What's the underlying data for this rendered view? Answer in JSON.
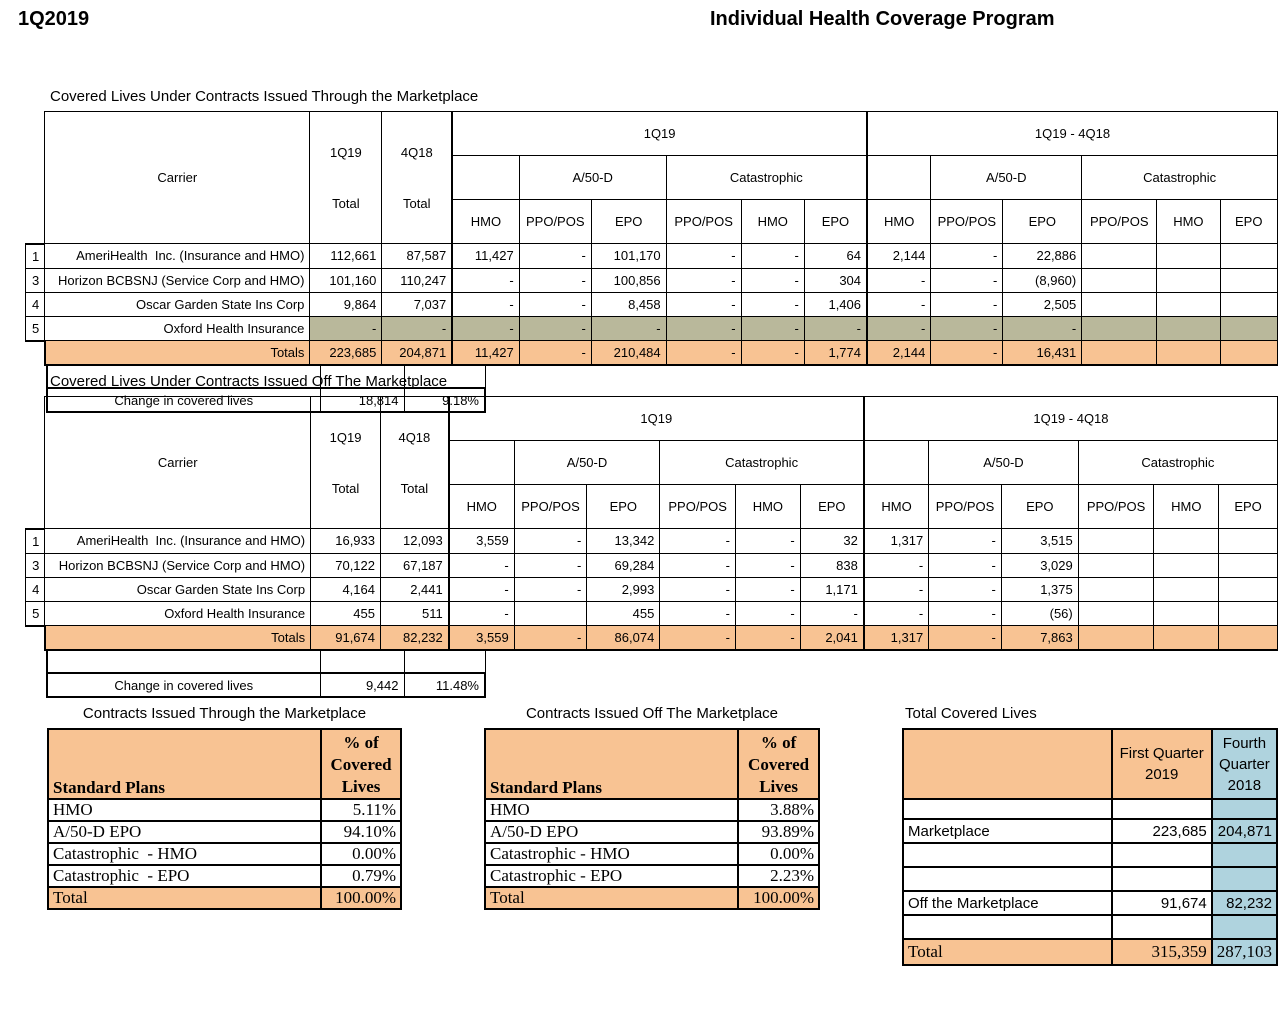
{
  "page": {
    "quarter": "1Q2019",
    "title": "Individual Health Coverage Program"
  },
  "colors": {
    "totals_orange": "#F8C393",
    "suppressed_olive": "#B9B89B",
    "prior_quarter_blue": "#AFD3DE"
  },
  "header": {
    "carrier": "Carrier",
    "q1": "1Q19",
    "q4": "4Q18",
    "total": "Total",
    "group_current": "1Q19",
    "group_diff": "1Q19 - 4Q18",
    "a50d": "A/50-D",
    "catastrophic": "Catastrophic",
    "plans": [
      "HMO",
      "PPO/POS",
      "EPO",
      "PPO/POS",
      "HMO",
      "EPO"
    ]
  },
  "marketplace": {
    "title": "Covered Lives Under Contracts Issued Through the Marketplace",
    "rows": [
      {
        "num": "1",
        "carrier": "AmeriHealth  Inc. (Insurance and HMO)",
        "olive": false,
        "values": [
          "112,661",
          "87,587",
          "11,427",
          "-",
          "101,170",
          "-",
          "-",
          "64",
          "2,144",
          "-",
          "22,886",
          "",
          "",
          ""
        ]
      },
      {
        "num": "3",
        "carrier": "Horizon BCBSNJ (Service Corp and HMO)",
        "olive": false,
        "values": [
          "101,160",
          "110,247",
          "-",
          "-",
          "100,856",
          "-",
          "-",
          "304",
          "-",
          "-",
          "(8,960)",
          "",
          "",
          ""
        ]
      },
      {
        "num": "4",
        "carrier": "Oscar Garden State Ins Corp",
        "olive": false,
        "values": [
          "9,864",
          "7,037",
          "-",
          "-",
          "8,458",
          "-",
          "-",
          "1,406",
          "-",
          "-",
          "2,505",
          "",
          "",
          ""
        ]
      },
      {
        "num": "5",
        "carrier": "Oxford Health Insurance",
        "olive": true,
        "values": [
          "-",
          "-",
          "-",
          "-",
          "-",
          "-",
          "-",
          "-",
          "-",
          "-",
          "-",
          "",
          "",
          ""
        ]
      }
    ],
    "totals": {
      "label": "Totals",
      "values": [
        "223,685",
        "204,871",
        "11,427",
        "-",
        "210,484",
        "-",
        "-",
        "1,774",
        "2,144",
        "-",
        "16,431",
        "",
        "",
        ""
      ]
    },
    "change": {
      "label": "Change in covered lives",
      "amount": "18,814",
      "percent": "9.18%"
    }
  },
  "off_marketplace": {
    "title": "Covered Lives Under Contracts Issued Off The Marketplace",
    "rows": [
      {
        "num": "1",
        "carrier": "AmeriHealth  Inc. (Insurance and HMO)",
        "olive": false,
        "values": [
          "16,933",
          "12,093",
          "3,559",
          "-",
          "13,342",
          "-",
          "-",
          "32",
          "1,317",
          "-",
          "3,515",
          "",
          "",
          ""
        ]
      },
      {
        "num": "3",
        "carrier": "Horizon BCBSNJ (Service Corp and HMO)",
        "olive": false,
        "values": [
          "70,122",
          "67,187",
          "-",
          "-",
          "69,284",
          "-",
          "-",
          "838",
          "-",
          "-",
          "3,029",
          "",
          "",
          ""
        ]
      },
      {
        "num": "4",
        "carrier": "Oscar Garden State Ins Corp",
        "olive": false,
        "values": [
          "4,164",
          "2,441",
          "-",
          "-",
          "2,993",
          "-",
          "-",
          "1,171",
          "-",
          "-",
          "1,375",
          "",
          "",
          ""
        ]
      },
      {
        "num": "5",
        "carrier": "Oxford Health Insurance",
        "olive": false,
        "values": [
          "455",
          "511",
          "-",
          "",
          "455",
          "-",
          "-",
          "-",
          "-",
          "-",
          "(56)",
          "",
          "",
          ""
        ]
      }
    ],
    "totals": {
      "label": "Totals",
      "values": [
        "91,674",
        "82,232",
        "3,559",
        "-",
        "86,074",
        "-",
        "-",
        "2,041",
        "1,317",
        "-",
        "7,863",
        "",
        "",
        ""
      ]
    },
    "change": {
      "label": "Change in covered lives",
      "amount": "9,442",
      "percent": "11.48%"
    }
  },
  "pct_marketplace": {
    "title": "Contracts Issued Through the Marketplace",
    "header": {
      "plans_label": "Standard Plans",
      "value_label": "% of\nCovered\nLives"
    },
    "rows": [
      {
        "label": "HMO",
        "value": "5.11%"
      },
      {
        "label": "A/50-D EPO",
        "value": "94.10%"
      },
      {
        "label": "Catastrophic  - HMO",
        "value": "0.00%"
      },
      {
        "label": "Catastrophic  - EPO",
        "value": "0.79%"
      }
    ],
    "total": {
      "label": "Total",
      "value": "100.00%"
    }
  },
  "pct_off_marketplace": {
    "title": "Contracts Issued Off The Marketplace",
    "header": {
      "plans_label": "Standard Plans",
      "value_label": "% of\nCovered\nLives"
    },
    "rows": [
      {
        "label": "HMO",
        "value": "3.88%"
      },
      {
        "label": "A/50-D EPO",
        "value": "93.89%"
      },
      {
        "label": "Catastrophic - HMO",
        "value": "0.00%"
      },
      {
        "label": "Catastrophic - EPO",
        "value": "2.23%"
      }
    ],
    "total": {
      "label": "Total",
      "value": "100.00%"
    }
  },
  "total_covered": {
    "title": "Total Covered Lives",
    "header": {
      "q1": "First Quarter 2019",
      "q4": "Fourth Quarter 2018"
    },
    "rows": {
      "marketplace": {
        "label": "Marketplace",
        "q1": "223,685",
        "q4": "204,871"
      },
      "off": {
        "label": "Off the Marketplace",
        "q1": "91,674",
        "q4": "82,232"
      }
    },
    "total": {
      "label": "Total",
      "q1": "315,359",
      "q4": "287,103"
    }
  }
}
